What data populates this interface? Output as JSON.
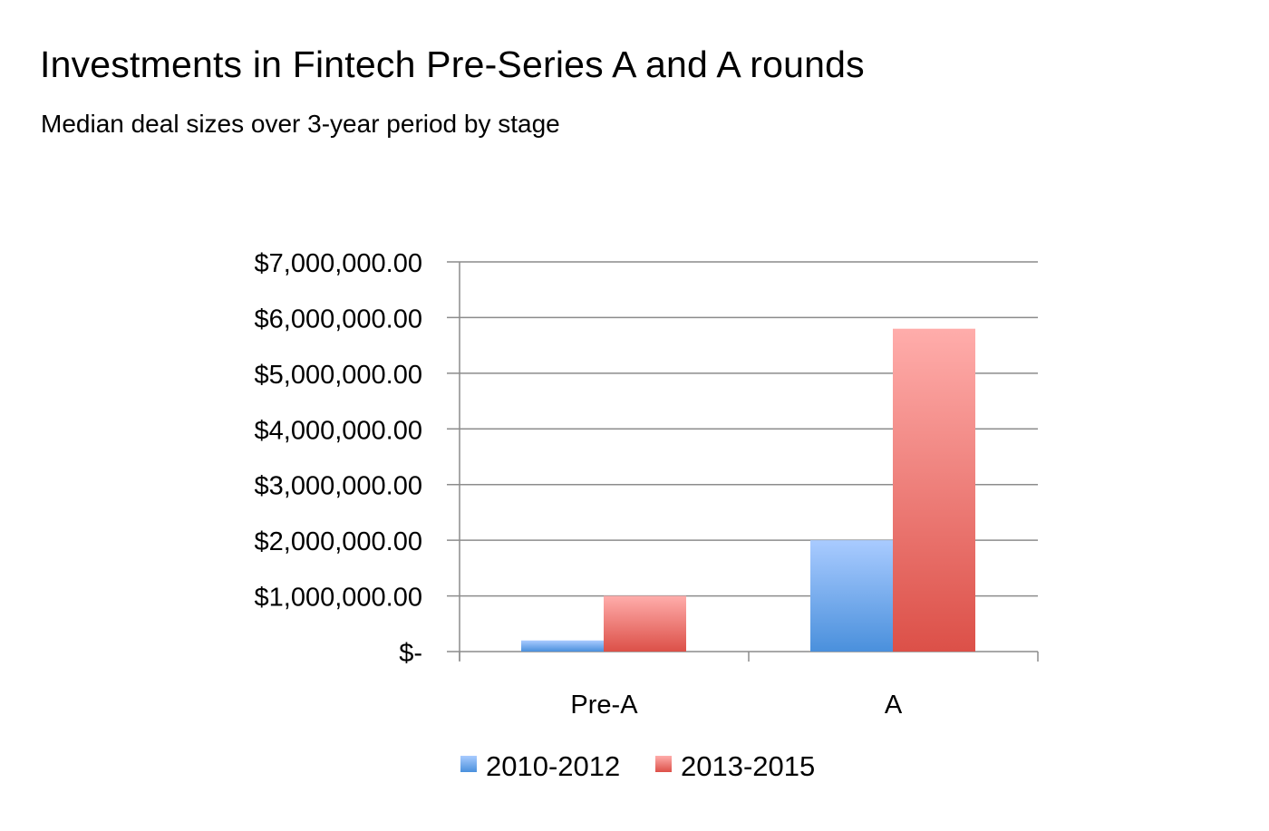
{
  "chart_data": {
    "type": "bar",
    "title": "Investments in Fintech Pre-Series A and A rounds",
    "subtitle": "Median deal sizes over 3-year period by stage",
    "categories": [
      "Pre-A",
      "A"
    ],
    "series": [
      {
        "name": "2010-2012",
        "values": [
          200000,
          2000000
        ],
        "color_top": "#a9cbff",
        "color_bottom": "#4a90dc"
      },
      {
        "name": "2013-2015",
        "values": [
          1000000,
          5800000
        ],
        "color_top": "#ffadab",
        "color_bottom": "#dc5048"
      }
    ],
    "ylim": [
      0,
      7000000
    ],
    "y_ticks": [
      {
        "value": 0,
        "label": "$-"
      },
      {
        "value": 1000000,
        "label": "$1,000,000.00"
      },
      {
        "value": 2000000,
        "label": "$2,000,000.00"
      },
      {
        "value": 3000000,
        "label": "$3,000,000.00"
      },
      {
        "value": 4000000,
        "label": "$4,000,000.00"
      },
      {
        "value": 5000000,
        "label": "$5,000,000.00"
      },
      {
        "value": 6000000,
        "label": "$6,000,000.00"
      },
      {
        "value": 7000000,
        "label": "$7,000,000.00"
      }
    ],
    "xlabel": "",
    "ylabel": "",
    "grid": true,
    "grid_color": "#8c8c8c",
    "legend_position": "bottom"
  }
}
